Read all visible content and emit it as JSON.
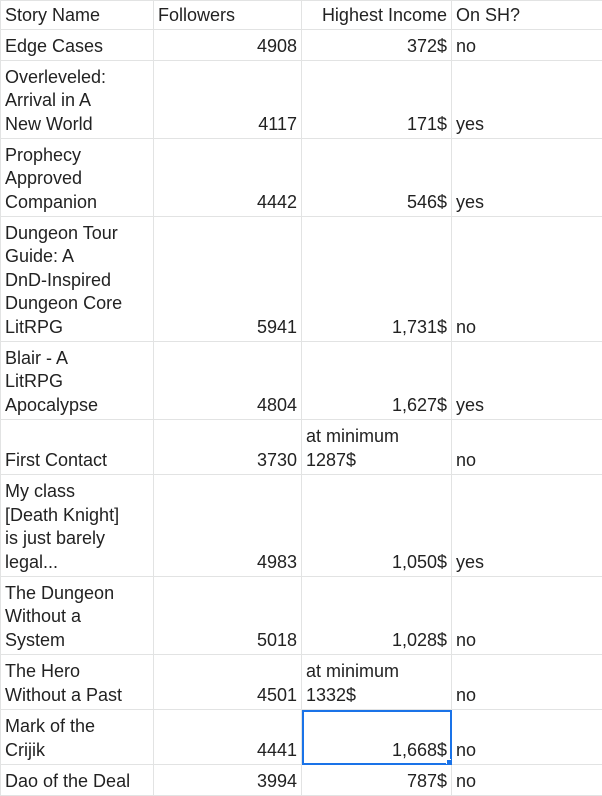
{
  "sheet": {
    "headers": [
      "Story Name",
      "Followers",
      "Highest Income",
      "On SH?"
    ],
    "rows": [
      {
        "name": "Edge Cases",
        "followers": "4908",
        "income": "372$",
        "on_sh": "no"
      },
      {
        "name": "Overleveled:\nArrival in A\nNew World",
        "followers": "4117",
        "income": "171$",
        "on_sh": "yes"
      },
      {
        "name": "Prophecy\nApproved\nCompanion",
        "followers": "4442",
        "income": "546$",
        "on_sh": "yes"
      },
      {
        "name": "Dungeon Tour\nGuide: A\nDnD-Inspired\nDungeon Core\nLitRPG",
        "followers": "5941",
        "income": "1,731$",
        "on_sh": "no"
      },
      {
        "name": "Blair - A\nLitRPG\nApocalypse",
        "followers": "4804",
        "income": "1,627$",
        "on_sh": "yes"
      },
      {
        "name": "First Contact",
        "followers": "3730",
        "income": "at minimum\n1287$",
        "on_sh": "no"
      },
      {
        "name": "My class\n[Death Knight]\nis just barely\nlegal...",
        "followers": "4983",
        "income": "1,050$",
        "on_sh": "yes"
      },
      {
        "name": "The Dungeon\nWithout a\nSystem",
        "followers": "5018",
        "income": "1,028$",
        "on_sh": "no"
      },
      {
        "name": "The Hero\nWithout a Past",
        "followers": "4501",
        "income": "at minimum\n1332$",
        "on_sh": "no"
      },
      {
        "name": "Mark of the\nCrijik",
        "followers": "4441",
        "income": "1,668$",
        "on_sh": "no"
      },
      {
        "name": "Dao of the Deal",
        "followers": "3994",
        "income": "787$",
        "on_sh": "no"
      }
    ],
    "selected_cell": "1,668$",
    "colors": {
      "grid": "#e2e3e3",
      "selection": "#1a73e8",
      "text": "#222222"
    }
  }
}
